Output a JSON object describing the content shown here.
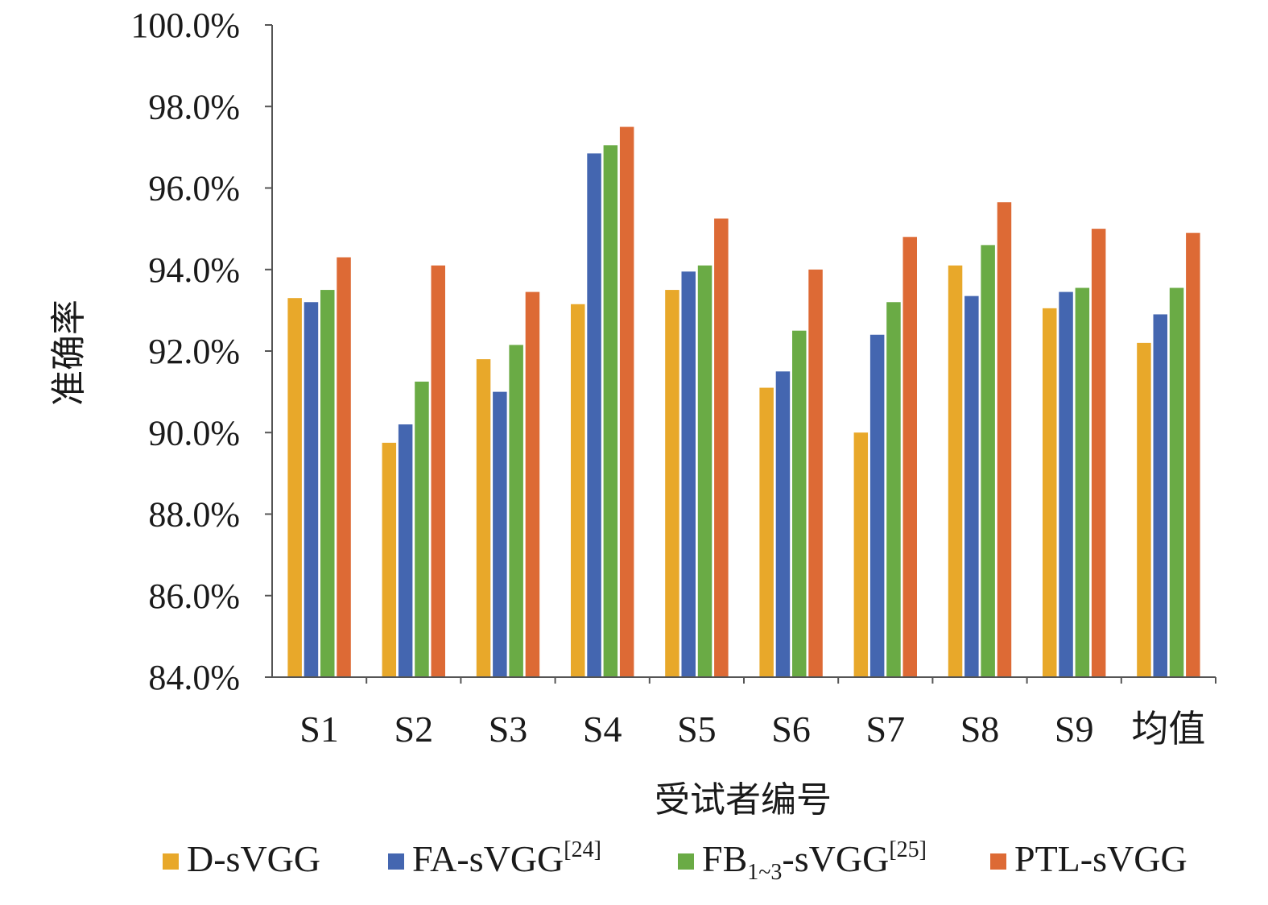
{
  "chart_data": {
    "type": "bar",
    "title": "",
    "xlabel": "受试者编号",
    "ylabel": "准确率",
    "ylim": [
      84.0,
      100.0
    ],
    "yticks": [
      84.0,
      86.0,
      88.0,
      90.0,
      92.0,
      94.0,
      96.0,
      98.0,
      100.0
    ],
    "ytick_labels": [
      "84.0%",
      "86.0%",
      "88.0%",
      "90.0%",
      "92.0%",
      "94.0%",
      "96.0%",
      "98.0%",
      "100.0%"
    ],
    "categories": [
      "S1",
      "S2",
      "S3",
      "S4",
      "S5",
      "S6",
      "S7",
      "S8",
      "S9",
      "均值"
    ],
    "grid": false,
    "legend_position": "bottom",
    "series": [
      {
        "name": "D-sVGG",
        "color": "#E8A82A",
        "values": [
          93.3,
          89.75,
          91.8,
          93.15,
          93.5,
          91.1,
          90.0,
          94.1,
          93.05,
          92.2
        ]
      },
      {
        "name": "FA-sVGG[24]",
        "color": "#4466B0",
        "values": [
          93.2,
          90.2,
          91.0,
          96.85,
          93.95,
          91.5,
          92.4,
          93.35,
          93.45,
          92.9
        ]
      },
      {
        "name": "FB1~3-sVGG[25]",
        "color": "#6AAB45",
        "values": [
          93.5,
          91.25,
          92.15,
          97.05,
          94.1,
          92.5,
          93.2,
          94.6,
          93.55,
          93.55
        ]
      },
      {
        "name": "PTL-sVGG",
        "color": "#DD6A35",
        "values": [
          94.3,
          94.1,
          93.45,
          97.5,
          95.25,
          94.0,
          94.8,
          95.65,
          95.0,
          94.9
        ]
      }
    ]
  },
  "legend": {
    "items": [
      {
        "main": "D-sVGG",
        "sub": "",
        "tail": "",
        "sup": ""
      },
      {
        "main": "FA-sVGG",
        "sub": "",
        "tail": "",
        "sup": "[24]"
      },
      {
        "main": "FB",
        "sub": "1~3",
        "tail": "-sVGG",
        "sup": "[25]"
      },
      {
        "main": "PTL-sVGG",
        "sub": "",
        "tail": "",
        "sup": ""
      }
    ]
  }
}
